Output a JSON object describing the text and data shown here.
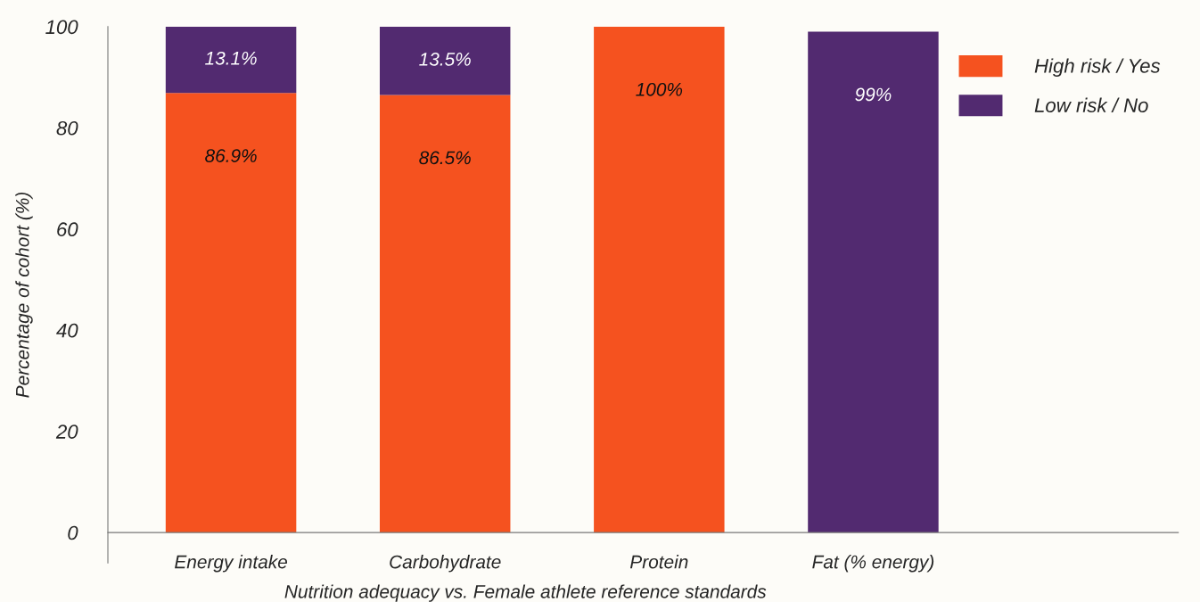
{
  "chart_data": {
    "type": "bar",
    "stacked": true,
    "xlabel": "Nutrition adequacy vs. Female athlete reference standards",
    "ylabel": "Percentage of cohort (%)",
    "categories": [
      "Energy intake",
      "Carbohydrate",
      "Protein",
      "Fat (% energy)"
    ],
    "series": [
      {
        "name": "High risk / Yes",
        "color": "#f5521f",
        "values": [
          86.9,
          86.5,
          100,
          null
        ],
        "value_labels": [
          "86.9%",
          "86.5%",
          "100%",
          null
        ]
      },
      {
        "name": "Low risk / No",
        "color": "#522a70",
        "values": [
          13.1,
          13.5,
          null,
          99
        ],
        "value_labels": [
          "13.1%",
          "13.5%",
          null,
          "99%"
        ]
      }
    ],
    "ylim": [
      -6,
      100
    ],
    "yticks": [
      0,
      20,
      40,
      60,
      80,
      100
    ],
    "grid": false,
    "legend": "top right"
  }
}
